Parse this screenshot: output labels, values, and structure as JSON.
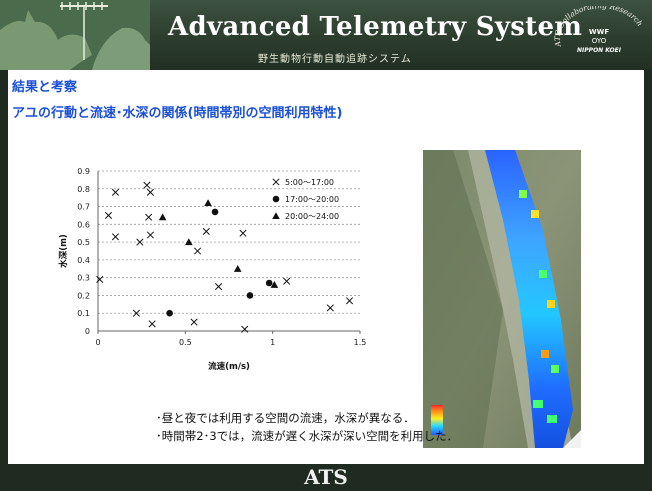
{
  "header": {
    "title": "Advanced Telemetry System",
    "subtitle": "野生動物行動自動追跡システム",
    "collab_ring_text": "ATS Collaborating Research",
    "logo_wwf": "WWF",
    "logo_oyo": "OYO",
    "logo_nippon_koei": "NIPPON KOEI"
  },
  "content": {
    "section_title": "結果と考察",
    "slide_title": "アユの行動と流速･水深の関係(時間帯別の空間利用特性)",
    "notes": [
      "･昼と夜では利用する空間の流速，水深が異なる．",
      "･時間帯2･3では，流速が遅く水深が深い空間を利用した．"
    ]
  },
  "footer": {
    "logo": "ATS"
  },
  "chart_data": {
    "type": "scatter",
    "title": "",
    "xlabel": "流速(m/s)",
    "ylabel": "水深(m)",
    "xlim": [
      0,
      1.5
    ],
    "ylim": [
      0,
      0.9
    ],
    "x_ticks": [
      "0",
      "0.5",
      "1",
      "1.5"
    ],
    "y_ticks": [
      "0",
      "0.1",
      "0.2",
      "0.3",
      "0.4",
      "0.5",
      "0.6",
      "0.7",
      "0.8",
      "0.9"
    ],
    "grid": "horizontal dotted",
    "legend_position": "right",
    "series": [
      {
        "name": "5:00～17:00",
        "marker": "x",
        "points": [
          [
            0.01,
            0.29
          ],
          [
            0.06,
            0.65
          ],
          [
            0.1,
            0.78
          ],
          [
            0.1,
            0.53
          ],
          [
            0.22,
            0.1
          ],
          [
            0.24,
            0.5
          ],
          [
            0.28,
            0.82
          ],
          [
            0.29,
            0.64
          ],
          [
            0.3,
            0.54
          ],
          [
            0.3,
            0.78
          ],
          [
            0.31,
            0.04
          ],
          [
            0.55,
            0.05
          ],
          [
            0.57,
            0.45
          ],
          [
            0.62,
            0.56
          ],
          [
            0.69,
            0.25
          ],
          [
            0.83,
            0.55
          ],
          [
            0.84,
            0.01
          ],
          [
            1.08,
            0.28
          ],
          [
            1.33,
            0.13
          ],
          [
            1.44,
            0.17
          ]
        ]
      },
      {
        "name": "17:00～20:00",
        "marker": "circle",
        "points": [
          [
            0.41,
            0.1
          ],
          [
            0.67,
            0.67
          ],
          [
            0.87,
            0.2
          ],
          [
            0.98,
            0.27
          ]
        ]
      },
      {
        "name": "20:00～24:00",
        "marker": "triangle",
        "points": [
          [
            0.37,
            0.64
          ],
          [
            0.52,
            0.5
          ],
          [
            0.63,
            0.72
          ],
          [
            0.8,
            0.35
          ],
          [
            1.01,
            0.26
          ]
        ]
      }
    ]
  }
}
